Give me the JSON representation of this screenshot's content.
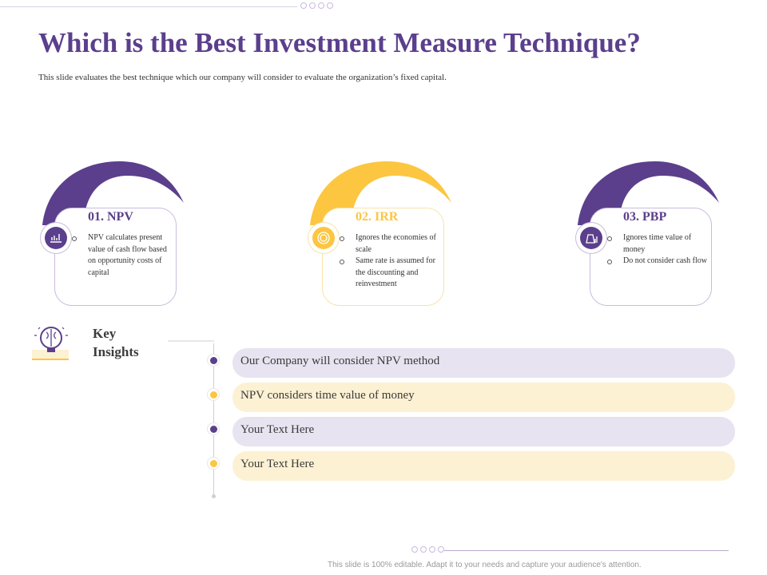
{
  "header": {
    "title": "Which is the Best Investment Measure Technique?",
    "subtitle": "This slide evaluates the best technique which our company will consider to evaluate the organization’s fixed capital."
  },
  "colors": {
    "purple": "#5b3f8c",
    "yellow": "#fcc640",
    "bar_purple": "#e8e3f0",
    "bar_yellow": "#fdf1d4"
  },
  "cards": [
    {
      "heading": "01. NPV",
      "icon": "money-growth-icon",
      "color": "purple",
      "points": [
        "NPV calculates present value of cash flow based on opportunity costs of capital"
      ]
    },
    {
      "heading": "02. IRR",
      "icon": "coin-target-icon",
      "color": "yellow",
      "points": [
        "Ignores the economies of scale",
        "Same rate is assumed for the discounting and reinvestment"
      ]
    },
    {
      "heading": "03. PBP",
      "icon": "money-bag-chart-icon",
      "color": "purple",
      "points": [
        "Ignores time value of money",
        "Do not consider cash flow"
      ]
    }
  ],
  "insights": {
    "title_line1": "Key",
    "title_line2": "Insights",
    "icon": "brain-bulb-icon",
    "items": [
      {
        "text": "Our Company will consider NPV method",
        "color": "purple"
      },
      {
        "text": "NPV considers time value of  money",
        "color": "yellow"
      },
      {
        "text": "Your Text Here",
        "color": "purple"
      },
      {
        "text": "Your Text Here",
        "color": "yellow"
      }
    ]
  },
  "footer": {
    "text": "This slide is 100% editable.  Adapt it to your needs and capture your audience's attention."
  }
}
